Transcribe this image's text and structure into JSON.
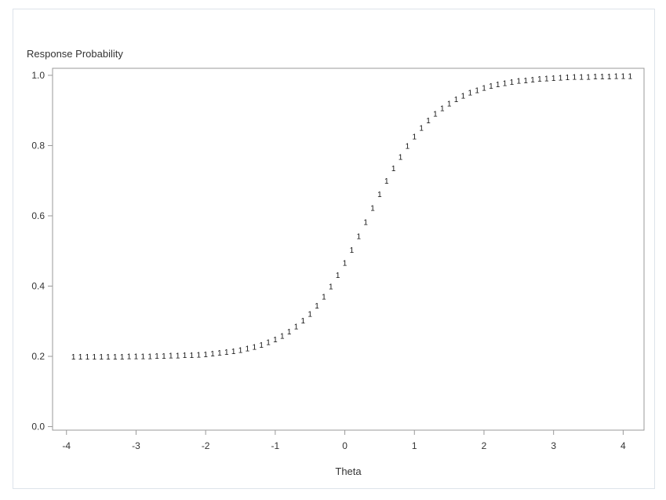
{
  "chart_data": {
    "type": "scatter",
    "ylabel": "Response Probability",
    "xlabel": "Theta",
    "xlim": [
      -4.2,
      4.3
    ],
    "ylim": [
      -0.01,
      1.02
    ],
    "x_ticks": [
      "-4",
      "-3",
      "-2",
      "-1",
      "0",
      "1",
      "2",
      "3",
      "4"
    ],
    "x_tick_values": [
      -4,
      -3,
      -2,
      -1,
      0,
      1,
      2,
      3,
      4
    ],
    "y_ticks": [
      "0.0",
      "0.2",
      "0.4",
      "0.6",
      "0.8",
      "1.0"
    ],
    "y_tick_values": [
      0.0,
      0.2,
      0.4,
      0.6,
      0.8,
      1.0
    ],
    "grid": false,
    "series": [
      {
        "marker": "1",
        "color": "#111111",
        "x": [
          -3.9,
          -3.8,
          -3.7,
          -3.6,
          -3.5,
          -3.4,
          -3.3,
          -3.2,
          -3.1,
          -3.0,
          -2.9,
          -2.8,
          -2.7,
          -2.6,
          -2.5,
          -2.4,
          -2.3,
          -2.2,
          -2.1,
          -2.0,
          -1.9,
          -1.8,
          -1.7,
          -1.6,
          -1.5,
          -1.4,
          -1.3,
          -1.2,
          -1.1,
          -1.0,
          -0.9,
          -0.8,
          -0.7,
          -0.6,
          -0.5,
          -0.4,
          -0.3,
          -0.2,
          -0.1,
          0.0,
          0.1,
          0.2,
          0.3,
          0.4,
          0.5,
          0.6,
          0.7,
          0.8,
          0.9,
          1.0,
          1.1,
          1.2,
          1.3,
          1.4,
          1.5,
          1.6,
          1.7,
          1.8,
          1.9,
          2.0,
          2.1,
          2.2,
          2.3,
          2.4,
          2.5,
          2.6,
          2.7,
          2.8,
          2.9,
          3.0,
          3.1,
          3.2,
          3.3,
          3.4,
          3.5,
          3.6,
          3.7,
          3.8,
          3.9,
          4.0,
          4.1
        ],
        "y": [
          0.2,
          0.2,
          0.2,
          0.2,
          0.2,
          0.2,
          0.2,
          0.2,
          0.201,
          0.201,
          0.201,
          0.201,
          0.202,
          0.202,
          0.203,
          0.203,
          0.204,
          0.205,
          0.206,
          0.207,
          0.209,
          0.211,
          0.213,
          0.216,
          0.219,
          0.223,
          0.228,
          0.234,
          0.241,
          0.249,
          0.259,
          0.271,
          0.286,
          0.303,
          0.322,
          0.345,
          0.371,
          0.4,
          0.432,
          0.467,
          0.504,
          0.543,
          0.583,
          0.623,
          0.662,
          0.7,
          0.736,
          0.769,
          0.8,
          0.827,
          0.851,
          0.873,
          0.891,
          0.907,
          0.921,
          0.933,
          0.943,
          0.952,
          0.959,
          0.965,
          0.971,
          0.975,
          0.979,
          0.982,
          0.985,
          0.987,
          0.989,
          0.991,
          0.992,
          0.993,
          0.994,
          0.995,
          0.996,
          0.997,
          0.997,
          0.998,
          0.998,
          0.998,
          0.999,
          0.999,
          0.999
        ]
      }
    ]
  }
}
